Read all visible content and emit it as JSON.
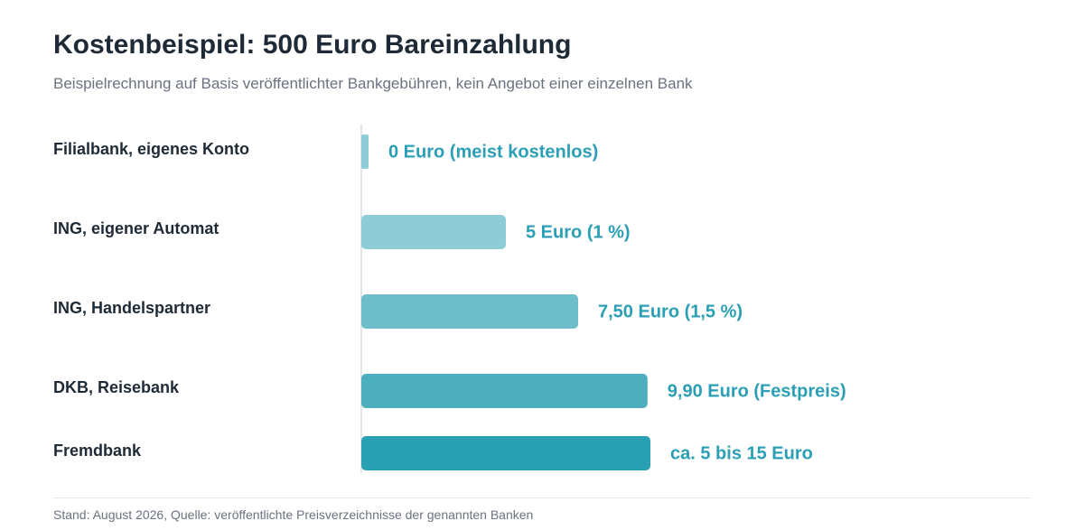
{
  "header": {
    "title": "Kostenbeispiel: 500 Euro Bareinzahlung",
    "subtitle": "Beispielrechnung auf Basis veröffentlichter Bankgebühren, kein Angebot einer einzelnen Bank"
  },
  "chart_data": {
    "type": "bar",
    "orientation": "horizontal",
    "categories": [
      "Filialbank, eigenes Konto",
      "ING, eigener Automat",
      "ING, Handelspartner",
      "DKB, Reisebank",
      "Fremdbank"
    ],
    "values": [
      0,
      5,
      7.5,
      9.9,
      10
    ],
    "value_labels": [
      "0 Euro (meist kostenlos)",
      "5 Euro (1 %)",
      "7,50 Euro (1,5 %)",
      "9,90 Euro (Festpreis)",
      "ca. 5 bis 15 Euro"
    ],
    "bar_colors": [
      "#8ecdd8",
      "#8ecdd8",
      "#6dbdcb",
      "#4daebe",
      "#2aa0b4"
    ],
    "label_color": "#2b9fb3",
    "xlim": [
      0,
      10
    ],
    "grid": false,
    "legend": "none"
  },
  "footer": {
    "source": "Stand: August 2026, Quelle: veröffentlichte Preisverzeichnisse der genannten Banken"
  }
}
